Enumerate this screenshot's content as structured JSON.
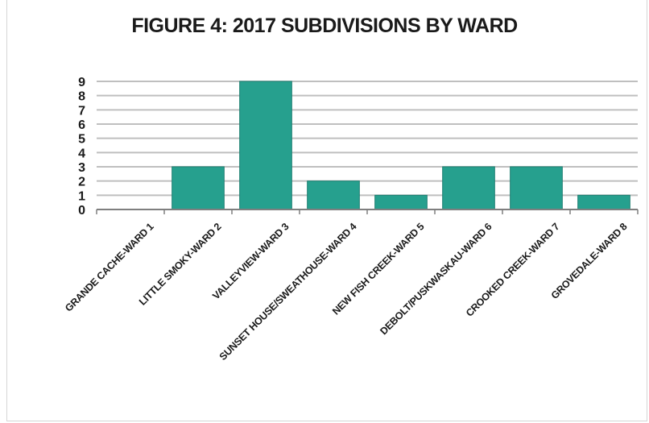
{
  "chart_data": {
    "type": "bar",
    "title": "FIGURE 4: 2017 SUBDIVISIONS BY WARD",
    "xlabel": "",
    "ylabel": "",
    "categories": [
      "GRANDE CACHE-WARD 1",
      "LITTLE SMOKY-WARD 2",
      "VALLEYVIEW-WARD 3",
      "SUNSET HOUSE/SWEATHOUSE-WARD 4",
      "NEW FISH CREEK-WARD 5",
      "DEBOLT/PUSKWASKAU-WARD 6",
      "CROOKED CREEK-WARD 7",
      "GROVEDALE-WARD 8"
    ],
    "values": [
      0,
      3,
      9,
      2,
      1,
      3,
      3,
      1
    ],
    "ylim": [
      0,
      9
    ],
    "yticks": [
      "0",
      "1",
      "2",
      "3",
      "4",
      "5",
      "6",
      "7",
      "8",
      "9"
    ],
    "grid": true,
    "legend": "none",
    "colors": {
      "bar": "#26a08e",
      "bar_edge": "#1e7f71",
      "grid": "#bfbfbf",
      "axis": "#7f7f7f",
      "text": "#1a1a1a"
    }
  }
}
